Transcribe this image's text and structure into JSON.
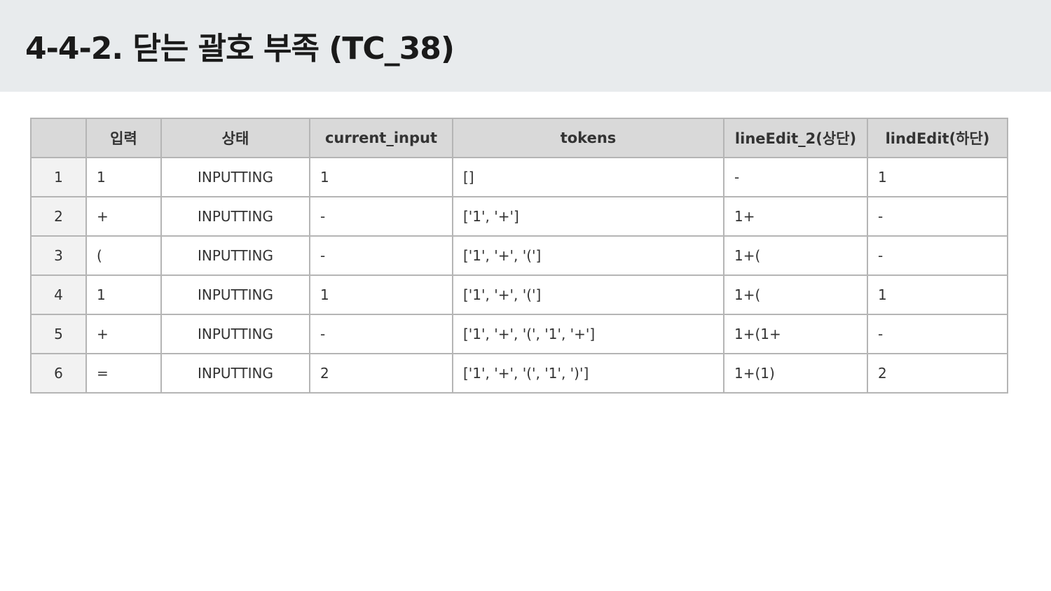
{
  "page": {
    "title": "4-4-2. 닫는 괄호 부족 (TC_38)"
  },
  "table": {
    "headers": [
      "",
      "입력",
      "상태",
      "current_input",
      "tokens",
      "lineEdit_2(상단)",
      "lindEdit(하단)"
    ],
    "rows": [
      {
        "no": "1",
        "input": "1",
        "state": "INPUTTING",
        "current_input": "1",
        "tokens": "[]",
        "top": "-",
        "bottom": "1"
      },
      {
        "no": "2",
        "input": "+",
        "state": "INPUTTING",
        "current_input": "-",
        "tokens": "['1', '+']",
        "top": "1+",
        "bottom": "-"
      },
      {
        "no": "3",
        "input": "(",
        "state": "INPUTTING",
        "current_input": "-",
        "tokens": "['1', '+', '(']",
        "top": "1+(",
        "bottom": "-"
      },
      {
        "no": "4",
        "input": "1",
        "state": "INPUTTING",
        "current_input": "1",
        "tokens": "['1', '+', '(']",
        "top": "1+(",
        "bottom": "1"
      },
      {
        "no": "5",
        "input": "+",
        "state": "INPUTTING",
        "current_input": "-",
        "tokens": "['1', '+', '(', '1', '+']",
        "top": "1+(1+",
        "bottom": "-"
      },
      {
        "no": "6",
        "input": "=",
        "state": "INPUTTING",
        "current_input": "2",
        "tokens": "['1', '+', '(', '1', ')']",
        "top": "1+(1)",
        "bottom": "2"
      }
    ]
  },
  "colors": {
    "title_bar_bg": "#e8ebed",
    "header_bg": "#d9d9d9",
    "index_col_bg": "#f2f2f2",
    "border": "#b5b5b5"
  }
}
